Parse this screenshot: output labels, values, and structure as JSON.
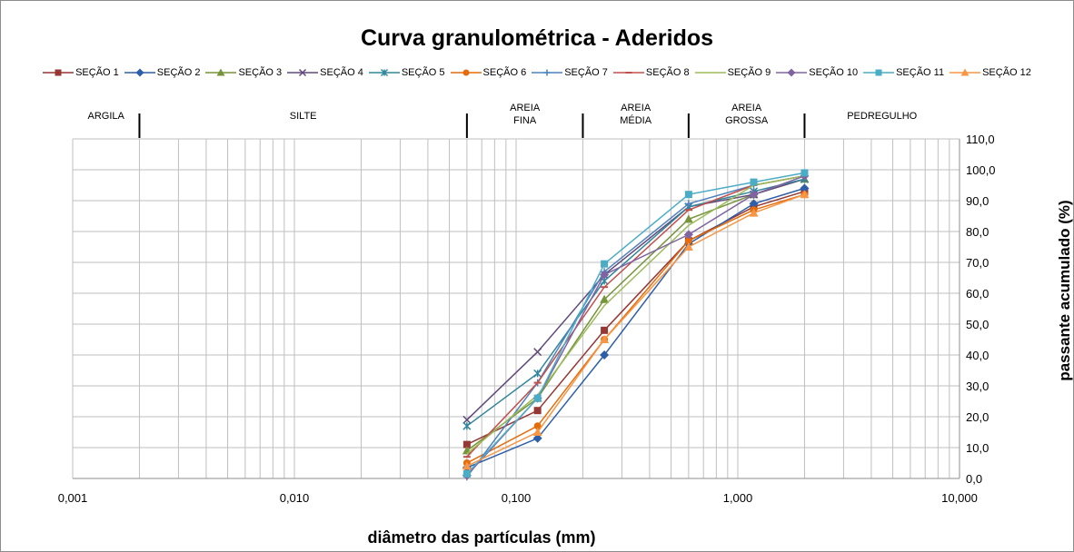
{
  "chart_data": {
    "type": "line",
    "title": "Curva granulométrica - Aderidos",
    "xlabel": "diâmetro das partículas  (mm)",
    "ylabel": "passante acumulado (%)",
    "x_scale": "log",
    "xlim": [
      0.001,
      10
    ],
    "ylim": [
      0,
      110
    ],
    "grid": "on",
    "legend_position": "top",
    "x_tick_labels": [
      "0,001",
      "0,010",
      "0,100",
      "1,000",
      "10,000"
    ],
    "y_tick_labels": [
      "0,0",
      "10,0",
      "20,0",
      "30,0",
      "40,0",
      "50,0",
      "60,0",
      "70,0",
      "80,0",
      "90,0",
      "100,0",
      "110,0"
    ],
    "zones": [
      {
        "label": [
          "ARGILA"
        ],
        "from": 0.001,
        "to": 0.002
      },
      {
        "label": [
          "SILTE"
        ],
        "from": 0.002,
        "to": 0.06
      },
      {
        "label": [
          "AREIA",
          "FINA"
        ],
        "from": 0.06,
        "to": 0.2
      },
      {
        "label": [
          "AREIA",
          "MÉDIA"
        ],
        "from": 0.2,
        "to": 0.6
      },
      {
        "label": [
          "AREIA",
          "GROSSA"
        ],
        "from": 0.6,
        "to": 2.0
      },
      {
        "label": [
          "PEDREGULHO"
        ],
        "from": 2.0,
        "to": 10
      }
    ],
    "x": [
      0.06,
      0.125,
      0.25,
      0.6,
      1.18,
      2.0
    ],
    "series": [
      {
        "name": "SEÇÃO 1",
        "color": "#953735",
        "marker": "square",
        "values": [
          11,
          22,
          48,
          77,
          88,
          93
        ]
      },
      {
        "name": "SEÇÃO 2",
        "color": "#2e5ea8",
        "marker": "diamond",
        "values": [
          3.5,
          13,
          40,
          76,
          89,
          94
        ]
      },
      {
        "name": "SEÇÃO 3",
        "color": "#77933c",
        "marker": "triangle",
        "values": [
          9,
          26,
          58,
          84,
          92,
          97
        ]
      },
      {
        "name": "SEÇÃO 4",
        "color": "#604a7b",
        "marker": "x",
        "values": [
          19,
          41,
          66,
          88,
          92,
          97
        ]
      },
      {
        "name": "SEÇÃO 5",
        "color": "#31859c",
        "marker": "star",
        "values": [
          17,
          34,
          64,
          88,
          93,
          97
        ]
      },
      {
        "name": "SEÇÃO 6",
        "color": "#e46c0a",
        "marker": "circle",
        "values": [
          5,
          17,
          45,
          77,
          87,
          92
        ]
      },
      {
        "name": "SEÇÃO 7",
        "color": "#4f81bd",
        "marker": "plus",
        "values": [
          0.5,
          31,
          67,
          89,
          95,
          98
        ]
      },
      {
        "name": "SEÇÃO 8",
        "color": "#c0504d",
        "marker": "dash",
        "values": [
          7,
          31,
          62,
          87,
          95,
          98
        ]
      },
      {
        "name": "SEÇÃO 9",
        "color": "#9bbb59",
        "marker": "none",
        "values": [
          8,
          27,
          56,
          82,
          95,
          98
        ]
      },
      {
        "name": "SEÇÃO 10",
        "color": "#8064a2",
        "marker": "diamond",
        "values": [
          1,
          26,
          66,
          79,
          92,
          98
        ]
      },
      {
        "name": "SEÇÃO 11",
        "color": "#4bacc6",
        "marker": "square",
        "values": [
          1.5,
          26,
          69.5,
          92,
          96,
          99
        ]
      },
      {
        "name": "SEÇÃO 12",
        "color": "#f79646",
        "marker": "triangle",
        "values": [
          4,
          15,
          45,
          75,
          86,
          92
        ]
      }
    ]
  }
}
